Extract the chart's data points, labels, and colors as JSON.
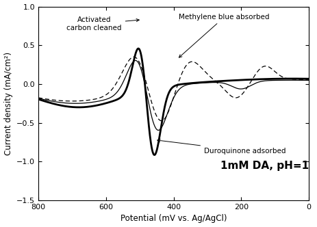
{
  "xlim": [
    800,
    0
  ],
  "ylim": [
    -1.5,
    1.0
  ],
  "xlabel": "Potential (mV vs. Ag/AgCl)",
  "ylabel": "Current density (mA/cm²)",
  "annotation_text": "1mM DA, pH=1",
  "background_color": "#ffffff",
  "label_acc": "Activated\ncarbon cleaned",
  "label_duro": "Duroquinone adsorbed",
  "label_mb": "Methylene blue absorbed",
  "yticks": [
    -1.5,
    -1.0,
    -0.5,
    0.0,
    0.5,
    1.0
  ],
  "xticks": [
    800,
    600,
    400,
    200,
    0
  ]
}
